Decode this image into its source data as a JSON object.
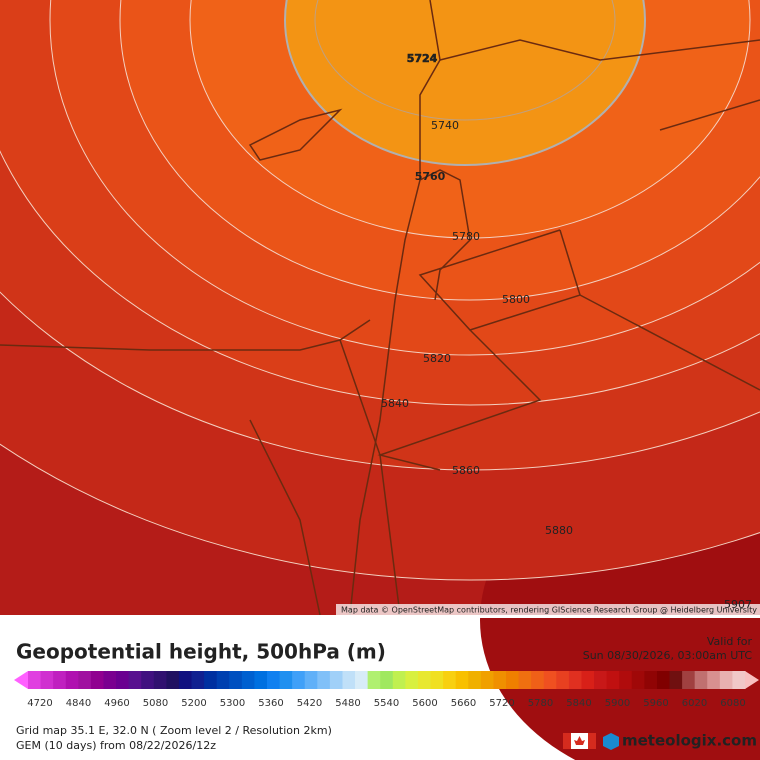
{
  "map": {
    "contour_labels": [
      5724,
      5740,
      5760,
      5780,
      5800,
      5820,
      5840,
      5860,
      5880,
      5907
    ],
    "attribution": "Map data © OpenStreetMap contributors, rendering GIScience Research Group @ Heidelberg University"
  },
  "header": {
    "title": "Geopotential height, 500hPa (m)",
    "valid_label": "Valid for",
    "valid_time": "Sun 08/30/2026, 03:00am UTC"
  },
  "legend": {
    "labels": [
      4720,
      4840,
      4960,
      5080,
      5200,
      5300,
      5360,
      5420,
      5480,
      5540,
      5600,
      5660,
      5720,
      5780,
      5840,
      5900,
      5960,
      6020,
      6080
    ],
    "colors": [
      "#e040e0",
      "#d030d0",
      "#c020c0",
      "#b010b0",
      "#a010a0",
      "#900090",
      "#7a0090",
      "#6a0090",
      "#58108f",
      "#401080",
      "#301070",
      "#201060",
      "#101080",
      "#102090",
      "#0030a0",
      "#0040b0",
      "#0050c0",
      "#0060d0",
      "#0070e0",
      "#1080f0",
      "#2090f0",
      "#40a0f8",
      "#60b0f8",
      "#80c0f8",
      "#a0d0f8",
      "#c0e0f8",
      "#d8ecf8",
      "#b0f070",
      "#a0e860",
      "#c0f050",
      "#d8f040",
      "#e8e830",
      "#f0e020",
      "#f8d010",
      "#f8c000",
      "#f0b000",
      "#f0a000",
      "#f09000",
      "#f08000",
      "#f07010",
      "#f06018",
      "#f05020",
      "#e84020",
      "#e03020",
      "#d82018",
      "#c81818",
      "#c01010",
      "#b00c0c",
      "#a00808",
      "#900404",
      "#800000",
      "#701010",
      "#a04040",
      "#c07070",
      "#d89090",
      "#e8b0b0",
      "#f0c8c8"
    ],
    "low_color": "#ff60ff",
    "high_color": "#f8c0c0"
  },
  "footer": {
    "grid": "Grid map 35.1 E, 32.0 N ( Zoom level 2 / Resolution 2km)",
    "model": "GEM (10 days) from  08/22/2026/12z",
    "brand": "meteologix.com"
  }
}
